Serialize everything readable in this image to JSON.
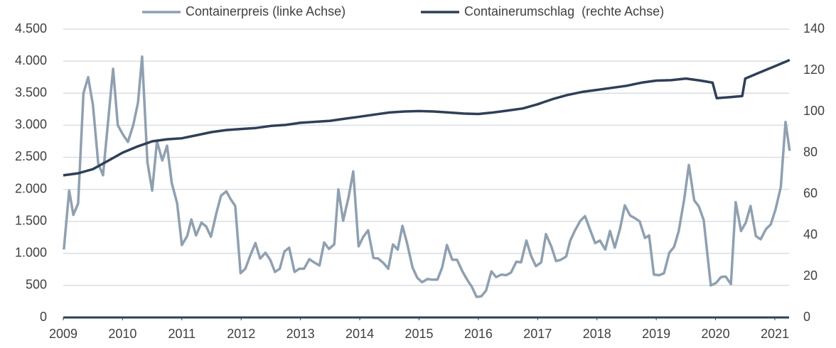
{
  "chart_data": {
    "type": "line",
    "xlim": [
      2009,
      2021.3
    ],
    "xticks": [
      2009,
      2010,
      2011,
      2012,
      2013,
      2014,
      2015,
      2016,
      2017,
      2018,
      2019,
      2020,
      2021
    ],
    "ylim": [
      0,
      4500
    ],
    "yticks": [
      0,
      500,
      {
        "value": 1000,
        "label": "1.000"
      },
      {
        "value": 1500,
        "label": "1.500"
      },
      {
        "value": 2000,
        "label": "2.000"
      },
      {
        "value": 2500,
        "label": "2.500"
      },
      {
        "value": 3000,
        "label": "3.000"
      },
      {
        "value": 3500,
        "label": "3.500"
      },
      {
        "value": 4000,
        "label": "4.000"
      },
      {
        "value": 4500,
        "label": "4.500"
      }
    ],
    "y2lim": [
      0,
      140
    ],
    "y2ticks": [
      0,
      20,
      40,
      60,
      80,
      100,
      120,
      140
    ],
    "grid": true,
    "legend": "top",
    "series": [
      {
        "name": "Containerpreis (linke Achse)",
        "color": "#8fa0b0",
        "x": [
          2009.01,
          2009.1,
          2009.17,
          2009.25,
          2009.34,
          2009.42,
          2009.5,
          2009.59,
          2009.67,
          2009.76,
          2009.84,
          2009.92,
          2010.01,
          2010.09,
          2010.18,
          2010.26,
          2010.33,
          2010.42,
          2010.5,
          2010.58,
          2010.67,
          2010.75,
          2010.83,
          2010.92,
          2011.0,
          2011.09,
          2011.16,
          2011.24,
          2011.33,
          2011.41,
          2011.49,
          2011.58,
          2011.66,
          2011.75,
          2011.82,
          2011.9,
          2011.99,
          2012.07,
          2012.15,
          2012.24,
          2012.32,
          2012.41,
          2012.49,
          2012.57,
          2012.65,
          2012.73,
          2012.81,
          2012.9,
          2012.98,
          2013.06,
          2013.15,
          2013.23,
          2013.32,
          2013.4,
          2013.48,
          2013.57,
          2013.64,
          2013.72,
          2013.81,
          2013.89,
          2013.98,
          2014.06,
          2014.14,
          2014.23,
          2014.31,
          2014.4,
          2014.48,
          2014.56,
          2014.64,
          2014.72,
          2014.8,
          2014.89,
          2014.97,
          2015.05,
          2015.14,
          2015.22,
          2015.31,
          2015.39,
          2015.47,
          2015.56,
          2015.64,
          2015.73,
          2015.81,
          2015.89,
          2015.97,
          2016.05,
          2016.13,
          2016.22,
          2016.3,
          2016.39,
          2016.47,
          2016.55,
          2016.64,
          2016.72,
          2016.81,
          2016.89,
          2016.97,
          2017.06,
          2017.14,
          2017.23,
          2017.31,
          2017.39,
          2017.48,
          2017.55,
          2017.63,
          2017.72,
          2017.8,
          2017.88,
          2017.97,
          2018.05,
          2018.14,
          2018.22,
          2018.3,
          2018.39,
          2018.47,
          2018.56,
          2018.64,
          2018.72,
          2018.81,
          2018.88,
          2018.96,
          2019.05,
          2019.13,
          2019.22,
          2019.3,
          2019.38,
          2019.47,
          2019.55,
          2019.64,
          2019.72,
          2019.8,
          2019.85,
          2019.92,
          2020.01,
          2020.09,
          2020.17,
          2020.26,
          2020.34,
          2020.43,
          2020.51,
          2020.59,
          2020.68,
          2020.76,
          2020.85,
          2020.93,
          2021.01,
          2021.1,
          2021.18,
          2021.25
        ],
        "values": [
          1060,
          1980,
          1600,
          1780,
          3500,
          3750,
          3320,
          2400,
          2220,
          3100,
          3880,
          3000,
          2850,
          2740,
          3000,
          3350,
          4070,
          2420,
          1980,
          2750,
          2450,
          2680,
          2100,
          1780,
          1130,
          1270,
          1530,
          1280,
          1480,
          1420,
          1260,
          1620,
          1900,
          1970,
          1850,
          1740,
          690,
          760,
          960,
          1160,
          920,
          1010,
          900,
          710,
          760,
          1030,
          1090,
          710,
          760,
          760,
          910,
          860,
          810,
          1170,
          1070,
          1140,
          2000,
          1510,
          1870,
          2280,
          1110,
          1260,
          1360,
          930,
          920,
          850,
          760,
          1140,
          1060,
          1430,
          1150,
          780,
          620,
          550,
          600,
          590,
          590,
          780,
          1130,
          900,
          900,
          720,
          590,
          480,
          320,
          330,
          420,
          720,
          630,
          670,
          660,
          700,
          870,
          860,
          1200,
          960,
          800,
          860,
          1300,
          1110,
          880,
          900,
          950,
          1200,
          1360,
          1510,
          1580,
          1380,
          1160,
          1200,
          1060,
          1350,
          1090,
          1390,
          1750,
          1590,
          1550,
          1500,
          1240,
          1280,
          670,
          660,
          690,
          1010,
          1100,
          1350,
          1840,
          2380,
          1830,
          1730,
          1520,
          1100,
          500,
          540,
          630,
          640,
          520,
          1800,
          1350,
          1480,
          1740,
          1270,
          1220,
          1380,
          1450,
          1680,
          2030,
          3050,
          2600
        ]
      },
      {
        "name": "Containerumschlag  (rechte Achse)",
        "color": "#2e4057",
        "axis": "y2",
        "x": [
          2009.0,
          2009.25,
          2009.5,
          2009.75,
          2010.0,
          2010.25,
          2010.5,
          2010.75,
          2011.0,
          2011.25,
          2011.5,
          2011.75,
          2012.0,
          2012.25,
          2012.5,
          2012.75,
          2013.0,
          2013.25,
          2013.5,
          2013.75,
          2014.0,
          2014.25,
          2014.5,
          2014.75,
          2015.0,
          2015.25,
          2015.5,
          2015.75,
          2016.0,
          2016.25,
          2016.5,
          2016.75,
          2017.0,
          2017.25,
          2017.5,
          2017.75,
          2018.0,
          2018.25,
          2018.5,
          2018.75,
          2019.0,
          2019.25,
          2019.5,
          2019.75,
          2019.95,
          2020.02,
          2020.25,
          2020.45,
          2020.5,
          2020.75,
          2021.0,
          2021.25
        ],
        "values": [
          69,
          70,
          72,
          76,
          80,
          83,
          85.5,
          86.5,
          87,
          88.5,
          90,
          91,
          91.5,
          92,
          93,
          93.5,
          94.5,
          95,
          95.5,
          96.5,
          97.5,
          98.5,
          99.5,
          100,
          100.2,
          100,
          99.5,
          99,
          98.8,
          99.5,
          100.5,
          101.5,
          103.5,
          106,
          108,
          109.5,
          110.5,
          111.5,
          112.5,
          114,
          115,
          115.2,
          116,
          115,
          114,
          106.5,
          107,
          107.5,
          116,
          119,
          122,
          125
        ]
      }
    ]
  }
}
